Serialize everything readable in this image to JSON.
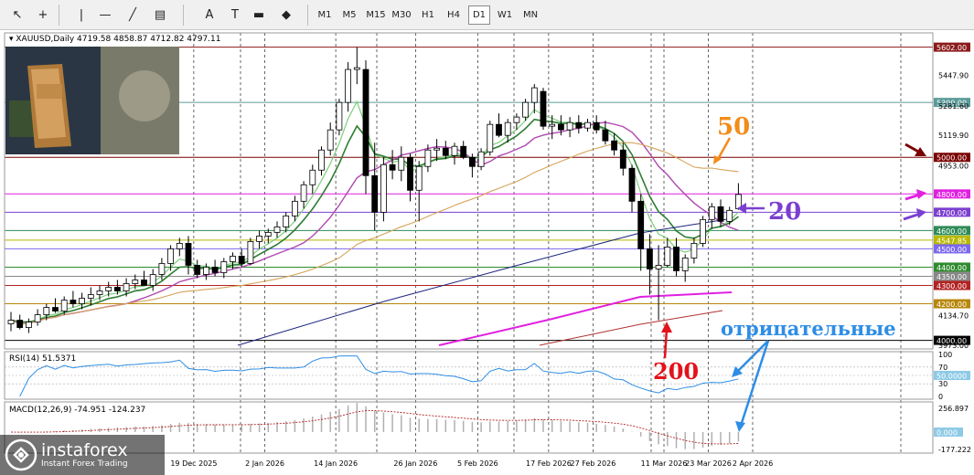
{
  "toolbar": {
    "tools": [
      {
        "name": "cursor-tool",
        "glyph": "↖"
      },
      {
        "name": "crosshair-tool",
        "glyph": "+"
      },
      {
        "name": "vertical-line-tool",
        "glyph": "|"
      },
      {
        "name": "horizontal-line-tool",
        "glyph": "—"
      },
      {
        "name": "trendline-tool",
        "glyph": "╱"
      },
      {
        "name": "channel-tool",
        "glyph": "▤"
      },
      {
        "name": "text-tool",
        "glyph": "A"
      },
      {
        "name": "label-tool",
        "glyph": "T"
      },
      {
        "name": "rectangle-tool",
        "glyph": "▬"
      },
      {
        "name": "shapes-tool",
        "glyph": "◆"
      }
    ],
    "timeframes": [
      "M1",
      "M5",
      "M15",
      "M30",
      "H1",
      "H4",
      "D1",
      "W1",
      "MN"
    ],
    "active_timeframe": "D1"
  },
  "chart_data": {
    "type": "candlestick",
    "symbol": "XAUUSD,Daily",
    "ohlc_header": "4719.58 4858.87 4712.82 4797.11",
    "y_axis": {
      "ylim": [
        3973,
        5660
      ],
      "tick_labels": [
        "5447.90",
        "5281.60",
        "5119.90",
        "4953.00",
        "4134.70",
        "3973.00"
      ]
    },
    "x_axis": {
      "tick_labels": [
        "19 Dec 2025",
        "2 Jan 2026",
        "14 Jan 2026",
        "26 Jan 2026",
        "5 Feb 2026",
        "17 Feb 2026",
        "27 Feb 2026",
        "11 Mar 2026",
        "23 Mar 2026",
        "2 Apr 2026"
      ]
    },
    "levels": [
      {
        "value": 5602,
        "label": "5602.00",
        "color": "#8b1a1a"
      },
      {
        "value": 5300,
        "label": "5300.00",
        "color": "#5b9a9a"
      },
      {
        "value": 5000,
        "label": "5000.00",
        "color": "#7a0000"
      },
      {
        "value": 4800,
        "label": "4800.00",
        "color": "#e020e0"
      },
      {
        "value": 4700,
        "label": "4700.00",
        "color": "#7b3fd1"
      },
      {
        "value": 4600,
        "label": "4600.00",
        "color": "#2e8b57"
      },
      {
        "value": 4547.85,
        "label": "4547.85",
        "color": "#b8b800"
      },
      {
        "value": 4500,
        "label": "4500.00",
        "color": "#7b68ee"
      },
      {
        "value": 4400,
        "label": "4400.00",
        "color": "#2e8b2e"
      },
      {
        "value": 4350,
        "label": "4350.00",
        "color": "#888888"
      },
      {
        "value": 4300,
        "label": "4300.00",
        "color": "#b22222"
      },
      {
        "value": 4200,
        "label": "4200.00",
        "color": "#b8860b"
      },
      {
        "value": 4000,
        "label": "4000.00",
        "color": "#000000"
      }
    ],
    "candles": [
      {
        "o": 4090,
        "h": 4155,
        "l": 4050,
        "c": 4110
      },
      {
        "o": 4110,
        "h": 4140,
        "l": 4060,
        "c": 4070
      },
      {
        "o": 4070,
        "h": 4120,
        "l": 4040,
        "c": 4100
      },
      {
        "o": 4100,
        "h": 4170,
        "l": 4080,
        "c": 4140
      },
      {
        "o": 4140,
        "h": 4200,
        "l": 4110,
        "c": 4180
      },
      {
        "o": 4180,
        "h": 4230,
        "l": 4150,
        "c": 4160
      },
      {
        "o": 4160,
        "h": 4240,
        "l": 4140,
        "c": 4220
      },
      {
        "o": 4220,
        "h": 4270,
        "l": 4180,
        "c": 4200
      },
      {
        "o": 4200,
        "h": 4260,
        "l": 4170,
        "c": 4230
      },
      {
        "o": 4230,
        "h": 4290,
        "l": 4190,
        "c": 4250
      },
      {
        "o": 4250,
        "h": 4300,
        "l": 4220,
        "c": 4270
      },
      {
        "o": 4270,
        "h": 4320,
        "l": 4240,
        "c": 4290
      },
      {
        "o": 4290,
        "h": 4330,
        "l": 4250,
        "c": 4270
      },
      {
        "o": 4270,
        "h": 4340,
        "l": 4240,
        "c": 4310
      },
      {
        "o": 4310,
        "h": 4360,
        "l": 4280,
        "c": 4330
      },
      {
        "o": 4330,
        "h": 4380,
        "l": 4300,
        "c": 4300
      },
      {
        "o": 4300,
        "h": 4390,
        "l": 4270,
        "c": 4360
      },
      {
        "o": 4360,
        "h": 4450,
        "l": 4330,
        "c": 4420
      },
      {
        "o": 4420,
        "h": 4520,
        "l": 4380,
        "c": 4500
      },
      {
        "o": 4500,
        "h": 4560,
        "l": 4460,
        "c": 4530
      },
      {
        "o": 4530,
        "h": 4570,
        "l": 4360,
        "c": 4410
      },
      {
        "o": 4410,
        "h": 4440,
        "l": 4340,
        "c": 4360
      },
      {
        "o": 4360,
        "h": 4420,
        "l": 4330,
        "c": 4400
      },
      {
        "o": 4400,
        "h": 4440,
        "l": 4350,
        "c": 4370
      },
      {
        "o": 4370,
        "h": 4450,
        "l": 4340,
        "c": 4430
      },
      {
        "o": 4430,
        "h": 4480,
        "l": 4390,
        "c": 4460
      },
      {
        "o": 4460,
        "h": 4500,
        "l": 4400,
        "c": 4420
      },
      {
        "o": 4420,
        "h": 4560,
        "l": 4410,
        "c": 4540
      },
      {
        "o": 4540,
        "h": 4600,
        "l": 4500,
        "c": 4570
      },
      {
        "o": 4570,
        "h": 4610,
        "l": 4530,
        "c": 4590
      },
      {
        "o": 4590,
        "h": 4650,
        "l": 4560,
        "c": 4620
      },
      {
        "o": 4620,
        "h": 4700,
        "l": 4590,
        "c": 4680
      },
      {
        "o": 4680,
        "h": 4790,
        "l": 4650,
        "c": 4760
      },
      {
        "o": 4760,
        "h": 4870,
        "l": 4720,
        "c": 4850
      },
      {
        "o": 4850,
        "h": 4960,
        "l": 4800,
        "c": 4930
      },
      {
        "o": 4930,
        "h": 5060,
        "l": 4900,
        "c": 5040
      },
      {
        "o": 5040,
        "h": 5190,
        "l": 5010,
        "c": 5150
      },
      {
        "o": 5150,
        "h": 5320,
        "l": 5120,
        "c": 5300
      },
      {
        "o": 5300,
        "h": 5520,
        "l": 5250,
        "c": 5480
      },
      {
        "o": 5480,
        "h": 5602,
        "l": 5400,
        "c": 5490
      },
      {
        "o": 5480,
        "h": 5530,
        "l": 4800,
        "c": 4900
      },
      {
        "o": 4900,
        "h": 5080,
        "l": 4600,
        "c": 4700
      },
      {
        "o": 4700,
        "h": 5000,
        "l": 4650,
        "c": 4960
      },
      {
        "o": 4960,
        "h": 5040,
        "l": 4880,
        "c": 4930
      },
      {
        "o": 4930,
        "h": 5060,
        "l": 4870,
        "c": 5000
      },
      {
        "o": 5000,
        "h": 5020,
        "l": 4760,
        "c": 4820
      },
      {
        "o": 4820,
        "h": 4980,
        "l": 4650,
        "c": 4950
      },
      {
        "o": 4950,
        "h": 5070,
        "l": 4920,
        "c": 5040
      },
      {
        "o": 5040,
        "h": 5100,
        "l": 4980,
        "c": 5050
      },
      {
        "o": 5050,
        "h": 5090,
        "l": 4990,
        "c": 5010
      },
      {
        "o": 5010,
        "h": 5080,
        "l": 4960,
        "c": 5060
      },
      {
        "o": 5060,
        "h": 5090,
        "l": 4990,
        "c": 5000
      },
      {
        "o": 5000,
        "h": 5020,
        "l": 4890,
        "c": 4950
      },
      {
        "o": 4950,
        "h": 5050,
        "l": 4930,
        "c": 5030
      },
      {
        "o": 5030,
        "h": 5200,
        "l": 5010,
        "c": 5180
      },
      {
        "o": 5180,
        "h": 5240,
        "l": 5110,
        "c": 5120
      },
      {
        "o": 5120,
        "h": 5210,
        "l": 5080,
        "c": 5190
      },
      {
        "o": 5190,
        "h": 5240,
        "l": 5150,
        "c": 5220
      },
      {
        "o": 5220,
        "h": 5320,
        "l": 5200,
        "c": 5300
      },
      {
        "o": 5300,
        "h": 5400,
        "l": 5240,
        "c": 5380
      },
      {
        "o": 5360,
        "h": 5380,
        "l": 5150,
        "c": 5170
      },
      {
        "o": 5170,
        "h": 5230,
        "l": 5100,
        "c": 5180
      },
      {
        "o": 5180,
        "h": 5230,
        "l": 5120,
        "c": 5150
      },
      {
        "o": 5150,
        "h": 5220,
        "l": 5110,
        "c": 5190
      },
      {
        "o": 5190,
        "h": 5230,
        "l": 5130,
        "c": 5160
      },
      {
        "o": 5160,
        "h": 5210,
        "l": 5140,
        "c": 5190
      },
      {
        "o": 5190,
        "h": 5230,
        "l": 5130,
        "c": 5150
      },
      {
        "o": 5150,
        "h": 5200,
        "l": 5070,
        "c": 5090
      },
      {
        "o": 5090,
        "h": 5130,
        "l": 5010,
        "c": 5040
      },
      {
        "o": 5040,
        "h": 5080,
        "l": 4900,
        "c": 4940
      },
      {
        "o": 4940,
        "h": 4960,
        "l": 4700,
        "c": 4760
      },
      {
        "o": 4760,
        "h": 4800,
        "l": 4380,
        "c": 4500
      },
      {
        "o": 4500,
        "h": 4580,
        "l": 4250,
        "c": 4390
      },
      {
        "o": 4390,
        "h": 4520,
        "l": 4110,
        "c": 4410
      },
      {
        "o": 4410,
        "h": 4560,
        "l": 4400,
        "c": 4510
      },
      {
        "o": 4510,
        "h": 4560,
        "l": 4350,
        "c": 4380
      },
      {
        "o": 4380,
        "h": 4470,
        "l": 4320,
        "c": 4450
      },
      {
        "o": 4450,
        "h": 4560,
        "l": 4420,
        "c": 4530
      },
      {
        "o": 4530,
        "h": 4680,
        "l": 4510,
        "c": 4660
      },
      {
        "o": 4660,
        "h": 4750,
        "l": 4610,
        "c": 4730
      },
      {
        "o": 4730,
        "h": 4770,
        "l": 4620,
        "c": 4650
      },
      {
        "o": 4650,
        "h": 4730,
        "l": 4630,
        "c": 4710
      },
      {
        "o": 4719.58,
        "h": 4858.87,
        "l": 4712.82,
        "c": 4797.11
      }
    ],
    "moving_averages": [
      {
        "name": "MA 20",
        "color": "#b048b0"
      },
      {
        "name": "MA 50",
        "color": "#d4a45a"
      },
      {
        "name": "MA 200",
        "color": "#b03030"
      }
    ],
    "annotations": {
      "ma50": "50",
      "ma20": "20",
      "ma200": "200",
      "negative": "отрицательные"
    },
    "rsi": {
      "label": "RSI(14) 51.5371",
      "ylim": [
        0,
        100
      ],
      "tick_labels": [
        "100",
        "70",
        "50.0000",
        "30",
        "0"
      ]
    },
    "macd": {
      "label": "MACD(12,26,9) -74.951 -124.237",
      "tick_labels": [
        "256.897",
        "0.000",
        "-177.222"
      ]
    }
  },
  "logo": {
    "name": "instaforex",
    "tagline": "Instant Forex Trading"
  },
  "colors": {
    "bull_candle": "#ffffff",
    "bear_candle": "#000000",
    "ma_green": "#2e7d32",
    "ma_light_green": "#7ccf7c",
    "ma_navy": "#1a237e",
    "ma_magenta": "#e020e0",
    "annot_orange": "#f28c1a",
    "annot_purple": "#7b3fd1",
    "annot_red": "#e3131b",
    "annot_blue": "#2e8de6"
  }
}
